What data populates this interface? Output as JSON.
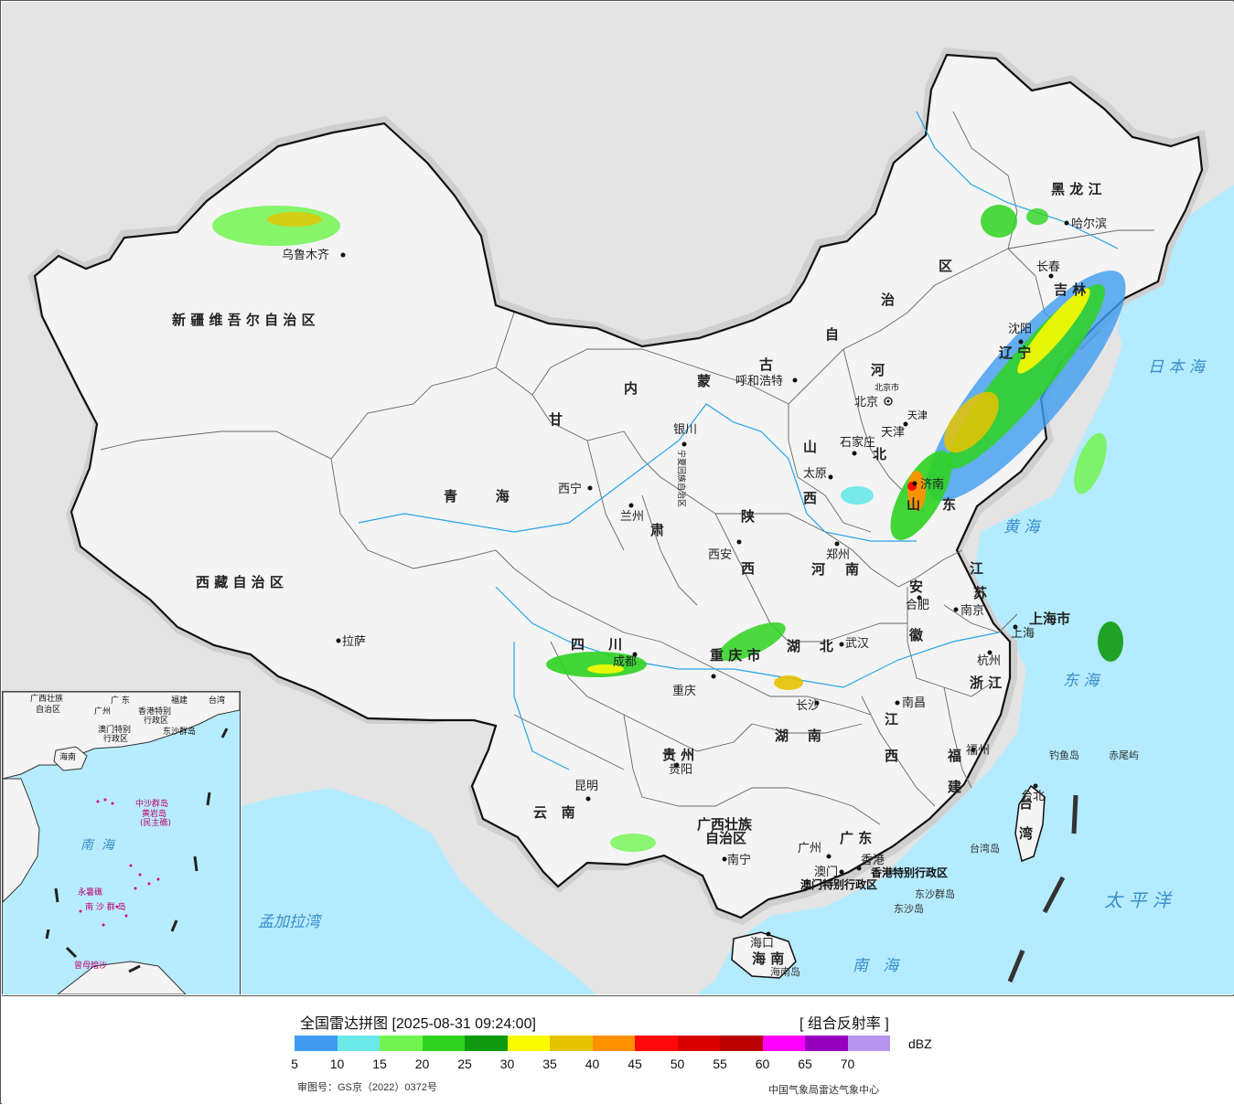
{
  "map": {
    "provinces": [
      {
        "id": "xinjiang",
        "label": "新 疆 维 吾 尔 自 治 区"
      },
      {
        "id": "xizang",
        "label": "西 藏 自 治 区"
      },
      {
        "id": "qinghai",
        "label": "青        海"
      },
      {
        "id": "gansu",
        "label": "甘"
      },
      {
        "id": "gansu2",
        "label": "肃"
      },
      {
        "id": "neimenggu1",
        "label": "内"
      },
      {
        "id": "neimenggu2",
        "label": "蒙"
      },
      {
        "id": "neimenggu3",
        "label": "古"
      },
      {
        "id": "neimenggu4",
        "label": "自"
      },
      {
        "id": "neimenggu5",
        "label": "治"
      },
      {
        "id": "neimenggu6",
        "label": "区"
      },
      {
        "id": "heilongjiang",
        "label": "黑 龙 江"
      },
      {
        "id": "jilin",
        "label": "吉 林"
      },
      {
        "id": "liaoning",
        "label": "辽 宁"
      },
      {
        "id": "hebei1",
        "label": "河"
      },
      {
        "id": "hebei2",
        "label": "北"
      },
      {
        "id": "shanxi1",
        "label": "山"
      },
      {
        "id": "shanxi2",
        "label": "西"
      },
      {
        "id": "shandong1",
        "label": "山"
      },
      {
        "id": "shandong2",
        "label": "东"
      },
      {
        "id": "shaanxi1",
        "label": "陕"
      },
      {
        "id": "shaanxi2",
        "label": "西"
      },
      {
        "id": "henan1",
        "label": "河"
      },
      {
        "id": "henan2",
        "label": "南"
      },
      {
        "id": "jiangsu1",
        "label": "江"
      },
      {
        "id": "jiangsu2",
        "label": "苏"
      },
      {
        "id": "anhui1",
        "label": "安"
      },
      {
        "id": "anhui2",
        "label": "徽"
      },
      {
        "id": "shanghai",
        "label": "上海市"
      },
      {
        "id": "zhejiang",
        "label": "浙 江"
      },
      {
        "id": "sichuan",
        "label": "四     川"
      },
      {
        "id": "chongqing",
        "label": "重 庆 市"
      },
      {
        "id": "hubei",
        "label": "湖    北"
      },
      {
        "id": "hunan",
        "label": "湖    南"
      },
      {
        "id": "jiangxi1",
        "label": "江"
      },
      {
        "id": "jiangxi2",
        "label": "西"
      },
      {
        "id": "fujian1",
        "label": "福"
      },
      {
        "id": "fujian2",
        "label": "建"
      },
      {
        "id": "guizhou",
        "label": "贵 州"
      },
      {
        "id": "yunnan",
        "label": "云   南"
      },
      {
        "id": "guangxi1",
        "label": "广西壮族"
      },
      {
        "id": "guangxi2",
        "label": "自治区"
      },
      {
        "id": "guangdong",
        "label": "广 东"
      },
      {
        "id": "hainan",
        "label": "海 南"
      },
      {
        "id": "taiwan1",
        "label": "台"
      },
      {
        "id": "taiwan2",
        "label": "湾"
      },
      {
        "id": "ningxia",
        "label": "宁夏回族自治区"
      },
      {
        "id": "beijing",
        "label": "北京市"
      },
      {
        "id": "tianjin",
        "label": "天津"
      },
      {
        "id": "xianggang",
        "label": "香港特别行政区"
      },
      {
        "id": "aomen",
        "label": "澳门特别行政区"
      }
    ],
    "cities": [
      {
        "name": "乌鲁木齐"
      },
      {
        "name": "拉萨"
      },
      {
        "name": "西宁"
      },
      {
        "name": "兰州"
      },
      {
        "name": "银川"
      },
      {
        "name": "呼和浩特"
      },
      {
        "name": "北京"
      },
      {
        "name": "天津"
      },
      {
        "name": "石家庄"
      },
      {
        "name": "太原"
      },
      {
        "name": "济南"
      },
      {
        "name": "郑州"
      },
      {
        "name": "西安"
      },
      {
        "name": "合肥"
      },
      {
        "name": "南京"
      },
      {
        "name": "上海"
      },
      {
        "name": "杭州"
      },
      {
        "name": "武汉"
      },
      {
        "name": "成都"
      },
      {
        "name": "重庆"
      },
      {
        "name": "长沙"
      },
      {
        "name": "南昌"
      },
      {
        "name": "福州"
      },
      {
        "name": "台北"
      },
      {
        "name": "贵阳"
      },
      {
        "name": "昆明"
      },
      {
        "name": "南宁"
      },
      {
        "name": "广州"
      },
      {
        "name": "香港"
      },
      {
        "name": "澳门"
      },
      {
        "name": "海口"
      },
      {
        "name": "哈尔滨"
      },
      {
        "name": "长春"
      },
      {
        "name": "沈阳"
      }
    ],
    "seas": [
      "日 本 海",
      "黄 海",
      "东 海",
      "太 平 洋",
      "南   海",
      "孟加拉湾"
    ],
    "islands": [
      "钓鱼岛",
      "赤尾屿",
      "台湾岛",
      "东沙群岛",
      "东沙岛",
      "海南岛"
    ],
    "inset": {
      "labels": [
        "广西壮族",
        "自治区",
        "广 东",
        "香港特别",
        "行政区",
        "福建",
        "台湾",
        "广州",
        "澳门特别",
        "行政区",
        "东沙群岛",
        "海南",
        "中沙群岛",
        "黄岩岛",
        "(民主礁)",
        "南  海",
        "永暑礁",
        "南 沙 群 岛",
        "曾母暗沙"
      ]
    }
  },
  "legend": {
    "title": "全国雷达拼图 [2025-08-31 09:24:00]",
    "product": "[ 组合反射率 ]",
    "unit": "dBZ",
    "colors": [
      "#3f9cf0",
      "#6ae8e8",
      "#72f550",
      "#2ed320",
      "#0f9a0f",
      "#fbfb00",
      "#e6c300",
      "#ff9000",
      "#ff0a0a",
      "#d90000",
      "#bb0000",
      "#ff00ff",
      "#9800bf",
      "#b695ef"
    ],
    "ticks": [
      "5",
      "10",
      "15",
      "20",
      "25",
      "30",
      "35",
      "40",
      "45",
      "50",
      "55",
      "60",
      "65",
      "70"
    ],
    "approval": "审图号：GS京（2022）0372号",
    "agency": "中国气象局雷达气象中心"
  }
}
